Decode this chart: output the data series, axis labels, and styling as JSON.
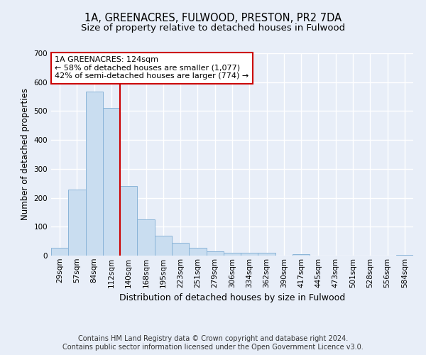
{
  "title_line1": "1A, GREENACRES, FULWOOD, PRESTON, PR2 7DA",
  "title_line2": "Size of property relative to detached houses in Fulwood",
  "xlabel": "Distribution of detached houses by size in Fulwood",
  "ylabel": "Number of detached properties",
  "categories": [
    "29sqm",
    "57sqm",
    "84sqm",
    "112sqm",
    "140sqm",
    "168sqm",
    "195sqm",
    "223sqm",
    "251sqm",
    "279sqm",
    "306sqm",
    "334sqm",
    "362sqm",
    "390sqm",
    "417sqm",
    "445sqm",
    "473sqm",
    "501sqm",
    "528sqm",
    "556sqm",
    "584sqm"
  ],
  "values": [
    27,
    228,
    568,
    510,
    240,
    125,
    70,
    44,
    27,
    15,
    10,
    9,
    10,
    0,
    5,
    0,
    0,
    0,
    0,
    0,
    3
  ],
  "bar_color": "#c9ddf0",
  "bar_edge_color": "#8ab4d8",
  "vline_x": 3.5,
  "vline_color": "#cc0000",
  "annotation_line1": "1A GREENACRES: 124sqm",
  "annotation_line2": "← 58% of detached houses are smaller (1,077)",
  "annotation_line3": "42% of semi-detached houses are larger (774) →",
  "annotation_box_facecolor": "#ffffff",
  "annotation_box_edgecolor": "#cc0000",
  "ylim": [
    0,
    700
  ],
  "yticks": [
    0,
    100,
    200,
    300,
    400,
    500,
    600,
    700
  ],
  "footer_line1": "Contains HM Land Registry data © Crown copyright and database right 2024.",
  "footer_line2": "Contains public sector information licensed under the Open Government Licence v3.0.",
  "bg_color": "#e8eef8",
  "grid_color": "#ffffff",
  "title_fontsize": 10.5,
  "subtitle_fontsize": 9.5,
  "ylabel_fontsize": 8.5,
  "xlabel_fontsize": 9,
  "tick_fontsize": 7.5,
  "annot_fontsize": 8,
  "footer_fontsize": 7
}
